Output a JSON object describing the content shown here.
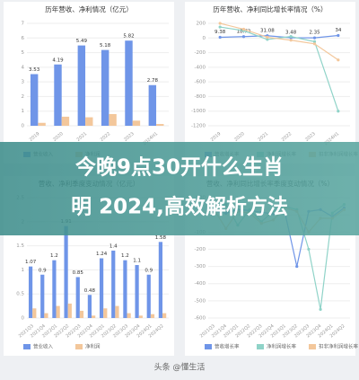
{
  "banner": {
    "line1": "今晚9点30开什么生肖",
    "line2": "明 2024,高效解析方法"
  },
  "watermark": "头条 @懂生活",
  "chart_data": [
    {
      "type": "bar",
      "title": "历年营收、净利情况（亿元）",
      "categories": [
        "2019",
        "2020",
        "2021",
        "2022",
        "2023",
        "2024H1"
      ],
      "series": [
        {
          "name": "营业收入",
          "color": "#6f95e8",
          "values": [
            3.53,
            4.19,
            5.49,
            5.18,
            5.82,
            2.78
          ]
        },
        {
          "name": "净利润",
          "color": "#f3c79b",
          "values": [
            0.2,
            0.62,
            0.58,
            0.8,
            0.35,
            0.12
          ]
        }
      ],
      "ylim": [
        0,
        7
      ],
      "yticks": [
        0,
        1,
        2,
        3,
        4,
        5,
        6,
        7
      ]
    },
    {
      "type": "line",
      "title": "历年营收、净利同比增长率情况（%）",
      "categories": [
        "2019",
        "2020",
        "2021",
        "2022",
        "2023",
        "2024H1"
      ],
      "series": [
        {
          "name": "营收增长率",
          "color": "#6f95e8",
          "values": [
            9.38,
            18.73,
            31.08,
            3.48,
            2.35,
            34.0
          ]
        },
        {
          "name": "净利润增长率",
          "color": "#8fd3c8",
          "values": [
            150,
            100,
            -20,
            20,
            -50,
            -1000
          ]
        },
        {
          "name": "扣非净利润增长率",
          "color": "#f3c79b",
          "values": [
            200,
            120,
            10,
            -30,
            -80,
            -300
          ]
        }
      ],
      "ylim": [
        -1200,
        200
      ],
      "yticks": [
        -1200,
        -1000,
        -800,
        -600,
        -400,
        -200,
        0,
        200
      ]
    },
    {
      "type": "bar",
      "title": "营收、净利季度变动情况（亿元）",
      "categories": [
        "2021Q3",
        "2021Q4",
        "2022Q1",
        "2022Q2",
        "2022Q3",
        "2022Q4",
        "2023Q1",
        "2023Q2",
        "2023Q3",
        "2023Q4",
        "2024Q1",
        "2024Q2"
      ],
      "series": [
        {
          "name": "营业收入",
          "color": "#6f95e8",
          "values": [
            1.07,
            0.9,
            1.2,
            1.91,
            0.85,
            0.48,
            1.24,
            1.4,
            1.2,
            1.1,
            0.9,
            1.58
          ]
        },
        {
          "name": "净利润",
          "color": "#f3c79b",
          "values": [
            0.2,
            0.1,
            0.25,
            0.3,
            0.15,
            0.05,
            0.2,
            0.25,
            0.1,
            0.05,
            0.08,
            0.1
          ]
        }
      ],
      "ylim": [
        0,
        2.5
      ],
      "yticks": [
        0,
        0.5,
        1,
        1.5,
        2,
        2.5
      ]
    },
    {
      "type": "line",
      "title": "营收、净利同比增长率季度变动情况（%）",
      "categories": [
        "2021Q3",
        "2021Q4",
        "2022Q1",
        "2022Q2",
        "2022Q3",
        "2022Q4",
        "2023Q1",
        "2023Q2",
        "2023Q3",
        "2023Q4",
        "2024Q1",
        "2024Q2"
      ],
      "series": [
        {
          "name": "营收增长率",
          "color": "#6f95e8",
          "values": [
            20,
            10,
            30,
            25,
            15,
            5,
            10,
            -300,
            20,
            29.97,
            -10,
            40
          ]
        },
        {
          "name": "净利润增长率",
          "color": "#8fd3c8",
          "values": [
            40,
            60,
            -60,
            30,
            -40,
            20,
            50,
            30,
            -200,
            -550,
            10,
            60
          ]
        },
        {
          "name": "扣非净利润增长率",
          "color": "#f3c79b",
          "values": [
            30,
            -80,
            20,
            10,
            -50,
            -30,
            40,
            20,
            -100,
            -20,
            -20,
            30
          ]
        }
      ],
      "ylim": [
        -600,
        100
      ],
      "yticks": [
        -600,
        -500,
        -400,
        -300,
        -200,
        -100,
        0,
        100
      ]
    }
  ]
}
